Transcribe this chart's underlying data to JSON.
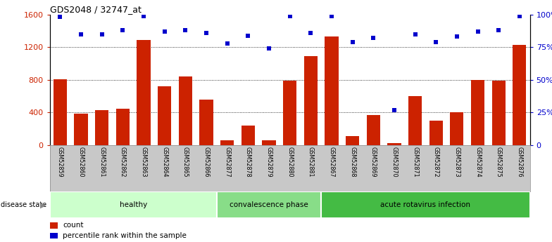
{
  "title": "GDS2048 / 32747_at",
  "samples": [
    "GSM52859",
    "GSM52860",
    "GSM52861",
    "GSM52862",
    "GSM52863",
    "GSM52864",
    "GSM52865",
    "GSM52866",
    "GSM52877",
    "GSM52878",
    "GSM52879",
    "GSM52880",
    "GSM52881",
    "GSM52867",
    "GSM52868",
    "GSM52869",
    "GSM52870",
    "GSM52871",
    "GSM52872",
    "GSM52873",
    "GSM52874",
    "GSM52875",
    "GSM52876"
  ],
  "counts": [
    810,
    390,
    430,
    450,
    1290,
    720,
    840,
    560,
    60,
    240,
    60,
    790,
    1090,
    1330,
    110,
    370,
    30,
    600,
    300,
    400,
    800,
    790,
    1230
  ],
  "percentiles": [
    98,
    85,
    85,
    88,
    99,
    87,
    88,
    86,
    78,
    84,
    74,
    99,
    86,
    99,
    79,
    82,
    27,
    85,
    79,
    83,
    87,
    88,
    99
  ],
  "groups": [
    {
      "label": "healthy",
      "start": 0,
      "end": 8,
      "color": "#ccffcc"
    },
    {
      "label": "convalescence phase",
      "start": 8,
      "end": 13,
      "color": "#88dd88"
    },
    {
      "label": "acute rotavirus infection",
      "start": 13,
      "end": 23,
      "color": "#44bb44"
    }
  ],
  "bar_color": "#cc2200",
  "dot_color": "#0000cc",
  "ylim_left": [
    0,
    1600
  ],
  "ylim_right": [
    0,
    100
  ],
  "yticks_left": [
    0,
    400,
    800,
    1200,
    1600
  ],
  "ytick_labels_left": [
    "0",
    "400",
    "800",
    "1200",
    "1600"
  ],
  "yticks_right": [
    0,
    25,
    50,
    75,
    100
  ],
  "ytick_labels_right": [
    "0",
    "25%",
    "50%",
    "75%",
    "100%"
  ],
  "grid_values": [
    400,
    800,
    1200
  ],
  "bg_color": "#ffffff",
  "label_bg": "#c8c8c8"
}
